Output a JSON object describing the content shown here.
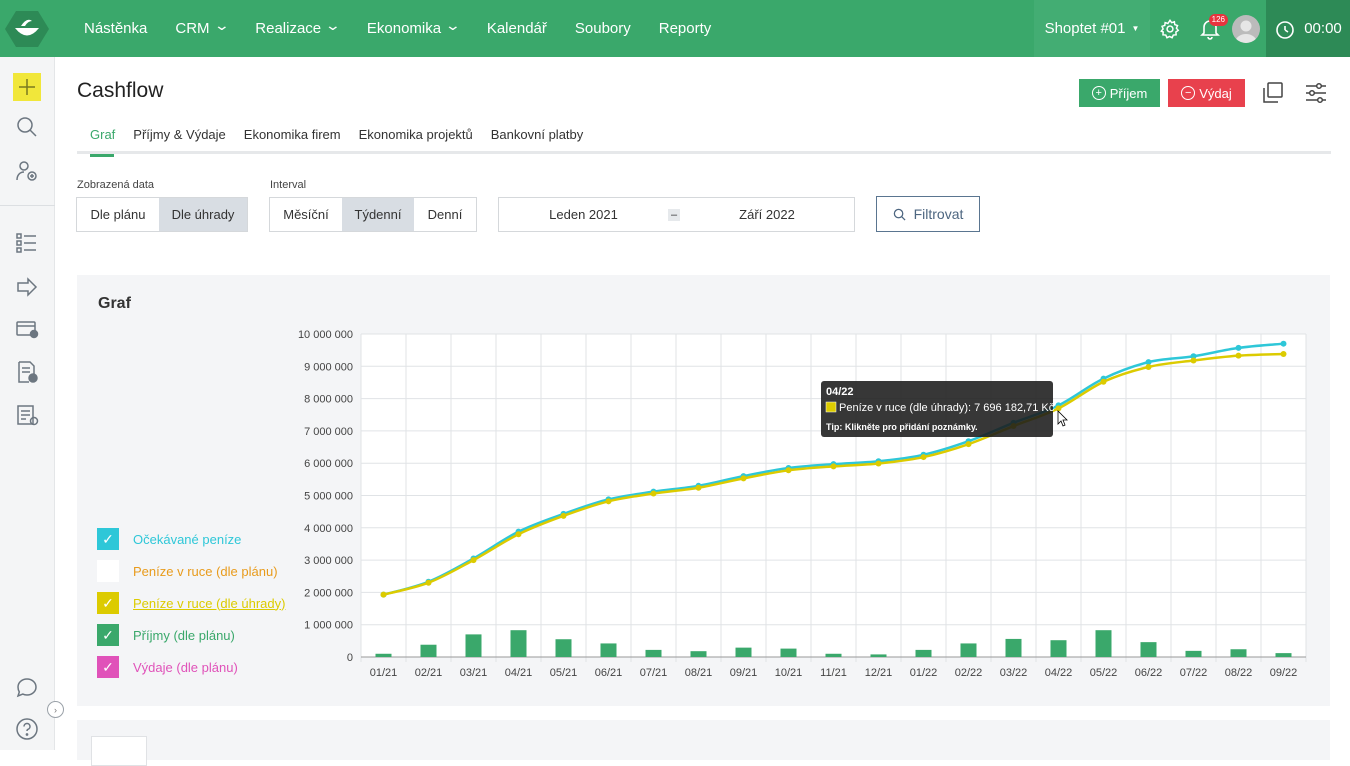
{
  "nav": {
    "items": [
      {
        "label": "Nástěnka",
        "dropdown": false
      },
      {
        "label": "CRM",
        "dropdown": true
      },
      {
        "label": "Realizace",
        "dropdown": true
      },
      {
        "label": "Ekonomika",
        "dropdown": true
      },
      {
        "label": "Kalendář",
        "dropdown": false
      },
      {
        "label": "Soubory",
        "dropdown": false
      },
      {
        "label": "Reporty",
        "dropdown": false
      }
    ],
    "company": "Shoptet #01",
    "notifications": "126",
    "timer": "00:00"
  },
  "page": {
    "title": "Cashflow",
    "income_button": "Příjem",
    "expense_button": "Výdaj",
    "tabs": [
      "Graf",
      "Příjmy & Výdaje",
      "Ekonomika firem",
      "Ekonomika projektů",
      "Bankovní platby"
    ],
    "active_tab": "Graf"
  },
  "filters": {
    "data_label": "Zobrazená data",
    "data_options": [
      "Dle plánu",
      "Dle úhrady"
    ],
    "data_selected": "Dle úhrady",
    "interval_label": "Interval",
    "interval_options": [
      "Měsíční",
      "Týdenní",
      "Denní"
    ],
    "interval_selected": "Týdenní",
    "date_from": "Leden 2021",
    "date_to": "Září 2022",
    "date_separator": "–",
    "filter_button": "Filtrovat"
  },
  "panel": {
    "title": "Graf",
    "legend": [
      {
        "label": "Očekávané peníze",
        "checked": true,
        "color": "#2ec7d8",
        "underline": false
      },
      {
        "label": "Peníze v ruce (dle plánu)",
        "checked": false,
        "color": "#e89b1c",
        "underline": false
      },
      {
        "label": "Peníze v ruce (dle úhrady)",
        "checked": true,
        "color": "#dccb00",
        "underline": true
      },
      {
        "label": "Příjmy (dle plánu)",
        "checked": true,
        "color": "#3aa86b",
        "underline": false
      },
      {
        "label": "Výdaje (dle plánu)",
        "checked": true,
        "color": "#e052b9",
        "underline": false
      }
    ],
    "tooltip": {
      "title": "04/22",
      "series": "Peníze v ruce (dle úhrady)",
      "value_text": "7 696 182,71 Kč",
      "tip": "Tip: Klikněte pro přidání poznámky."
    }
  },
  "chart_data": {
    "type": "line",
    "categories": [
      "01/21",
      "02/21",
      "03/21",
      "04/21",
      "05/21",
      "06/21",
      "07/21",
      "08/21",
      "09/21",
      "10/21",
      "11/21",
      "12/21",
      "01/22",
      "02/22",
      "03/22",
      "04/22",
      "05/22",
      "06/22",
      "07/22",
      "08/22",
      "09/22"
    ],
    "ylim": [
      0,
      10000000
    ],
    "yticks": [
      "0",
      "1 000 000",
      "2 000 000",
      "3 000 000",
      "4 000 000",
      "5 000 000",
      "6 000 000",
      "7 000 000",
      "8 000 000",
      "9 000 000",
      "10 000 000"
    ],
    "series": [
      {
        "name": "Očekávané peníze",
        "type": "line",
        "color": "#2ec7d8",
        "values": [
          1930000,
          2330000,
          3050000,
          3880000,
          4430000,
          4880000,
          5120000,
          5300000,
          5600000,
          5850000,
          5970000,
          6060000,
          6260000,
          6680000,
          7250000,
          7790000,
          8620000,
          9130000,
          9310000,
          9570000,
          9700000
        ]
      },
      {
        "name": "Peníze v ruce (dle úhrady)",
        "type": "line",
        "color": "#dccb00",
        "values": [
          1930000,
          2300000,
          3000000,
          3800000,
          4370000,
          4820000,
          5060000,
          5240000,
          5530000,
          5780000,
          5900000,
          5990000,
          6190000,
          6590000,
          7150000,
          7696182.71,
          8520000,
          8980000,
          9180000,
          9330000,
          9380000
        ]
      },
      {
        "name": "Příjmy (dle plánu)",
        "type": "bar",
        "color": "#3aa86b",
        "values": [
          100000,
          380000,
          700000,
          830000,
          550000,
          420000,
          220000,
          180000,
          290000,
          260000,
          100000,
          80000,
          220000,
          420000,
          560000,
          520000,
          830000,
          460000,
          190000,
          240000,
          120000
        ]
      }
    ]
  }
}
